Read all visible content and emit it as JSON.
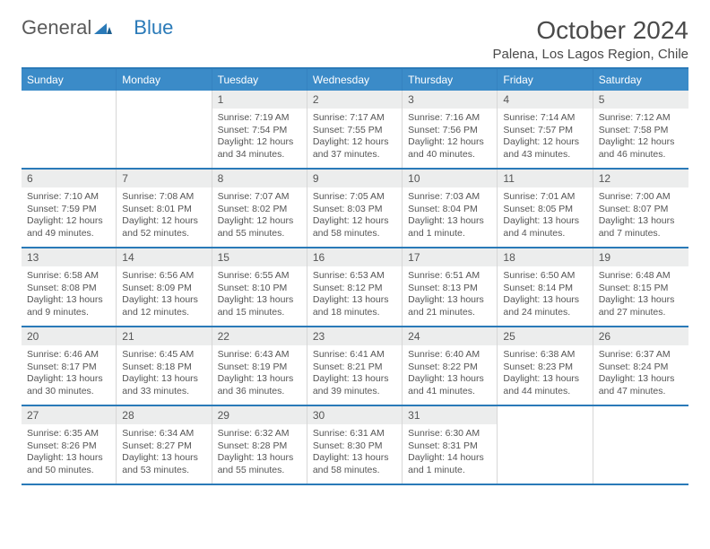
{
  "logo": {
    "text1": "General",
    "text2": "Blue"
  },
  "title": "October 2024",
  "location": "Palena, Los Lagos Region, Chile",
  "colors": {
    "header_bg": "#3b8bc8",
    "border_blue": "#2a7ab8",
    "daynum_bg": "#eceded",
    "text": "#555555",
    "cell_border": "#d7d7d7"
  },
  "weekdays": [
    "Sunday",
    "Monday",
    "Tuesday",
    "Wednesday",
    "Thursday",
    "Friday",
    "Saturday"
  ],
  "weeks": [
    [
      null,
      null,
      {
        "n": "1",
        "sr": "Sunrise: 7:19 AM",
        "ss": "Sunset: 7:54 PM",
        "dl": "Daylight: 12 hours and 34 minutes."
      },
      {
        "n": "2",
        "sr": "Sunrise: 7:17 AM",
        "ss": "Sunset: 7:55 PM",
        "dl": "Daylight: 12 hours and 37 minutes."
      },
      {
        "n": "3",
        "sr": "Sunrise: 7:16 AM",
        "ss": "Sunset: 7:56 PM",
        "dl": "Daylight: 12 hours and 40 minutes."
      },
      {
        "n": "4",
        "sr": "Sunrise: 7:14 AM",
        "ss": "Sunset: 7:57 PM",
        "dl": "Daylight: 12 hours and 43 minutes."
      },
      {
        "n": "5",
        "sr": "Sunrise: 7:12 AM",
        "ss": "Sunset: 7:58 PM",
        "dl": "Daylight: 12 hours and 46 minutes."
      }
    ],
    [
      {
        "n": "6",
        "sr": "Sunrise: 7:10 AM",
        "ss": "Sunset: 7:59 PM",
        "dl": "Daylight: 12 hours and 49 minutes."
      },
      {
        "n": "7",
        "sr": "Sunrise: 7:08 AM",
        "ss": "Sunset: 8:01 PM",
        "dl": "Daylight: 12 hours and 52 minutes."
      },
      {
        "n": "8",
        "sr": "Sunrise: 7:07 AM",
        "ss": "Sunset: 8:02 PM",
        "dl": "Daylight: 12 hours and 55 minutes."
      },
      {
        "n": "9",
        "sr": "Sunrise: 7:05 AM",
        "ss": "Sunset: 8:03 PM",
        "dl": "Daylight: 12 hours and 58 minutes."
      },
      {
        "n": "10",
        "sr": "Sunrise: 7:03 AM",
        "ss": "Sunset: 8:04 PM",
        "dl": "Daylight: 13 hours and 1 minute."
      },
      {
        "n": "11",
        "sr": "Sunrise: 7:01 AM",
        "ss": "Sunset: 8:05 PM",
        "dl": "Daylight: 13 hours and 4 minutes."
      },
      {
        "n": "12",
        "sr": "Sunrise: 7:00 AM",
        "ss": "Sunset: 8:07 PM",
        "dl": "Daylight: 13 hours and 7 minutes."
      }
    ],
    [
      {
        "n": "13",
        "sr": "Sunrise: 6:58 AM",
        "ss": "Sunset: 8:08 PM",
        "dl": "Daylight: 13 hours and 9 minutes."
      },
      {
        "n": "14",
        "sr": "Sunrise: 6:56 AM",
        "ss": "Sunset: 8:09 PM",
        "dl": "Daylight: 13 hours and 12 minutes."
      },
      {
        "n": "15",
        "sr": "Sunrise: 6:55 AM",
        "ss": "Sunset: 8:10 PM",
        "dl": "Daylight: 13 hours and 15 minutes."
      },
      {
        "n": "16",
        "sr": "Sunrise: 6:53 AM",
        "ss": "Sunset: 8:12 PM",
        "dl": "Daylight: 13 hours and 18 minutes."
      },
      {
        "n": "17",
        "sr": "Sunrise: 6:51 AM",
        "ss": "Sunset: 8:13 PM",
        "dl": "Daylight: 13 hours and 21 minutes."
      },
      {
        "n": "18",
        "sr": "Sunrise: 6:50 AM",
        "ss": "Sunset: 8:14 PM",
        "dl": "Daylight: 13 hours and 24 minutes."
      },
      {
        "n": "19",
        "sr": "Sunrise: 6:48 AM",
        "ss": "Sunset: 8:15 PM",
        "dl": "Daylight: 13 hours and 27 minutes."
      }
    ],
    [
      {
        "n": "20",
        "sr": "Sunrise: 6:46 AM",
        "ss": "Sunset: 8:17 PM",
        "dl": "Daylight: 13 hours and 30 minutes."
      },
      {
        "n": "21",
        "sr": "Sunrise: 6:45 AM",
        "ss": "Sunset: 8:18 PM",
        "dl": "Daylight: 13 hours and 33 minutes."
      },
      {
        "n": "22",
        "sr": "Sunrise: 6:43 AM",
        "ss": "Sunset: 8:19 PM",
        "dl": "Daylight: 13 hours and 36 minutes."
      },
      {
        "n": "23",
        "sr": "Sunrise: 6:41 AM",
        "ss": "Sunset: 8:21 PM",
        "dl": "Daylight: 13 hours and 39 minutes."
      },
      {
        "n": "24",
        "sr": "Sunrise: 6:40 AM",
        "ss": "Sunset: 8:22 PM",
        "dl": "Daylight: 13 hours and 41 minutes."
      },
      {
        "n": "25",
        "sr": "Sunrise: 6:38 AM",
        "ss": "Sunset: 8:23 PM",
        "dl": "Daylight: 13 hours and 44 minutes."
      },
      {
        "n": "26",
        "sr": "Sunrise: 6:37 AM",
        "ss": "Sunset: 8:24 PM",
        "dl": "Daylight: 13 hours and 47 minutes."
      }
    ],
    [
      {
        "n": "27",
        "sr": "Sunrise: 6:35 AM",
        "ss": "Sunset: 8:26 PM",
        "dl": "Daylight: 13 hours and 50 minutes."
      },
      {
        "n": "28",
        "sr": "Sunrise: 6:34 AM",
        "ss": "Sunset: 8:27 PM",
        "dl": "Daylight: 13 hours and 53 minutes."
      },
      {
        "n": "29",
        "sr": "Sunrise: 6:32 AM",
        "ss": "Sunset: 8:28 PM",
        "dl": "Daylight: 13 hours and 55 minutes."
      },
      {
        "n": "30",
        "sr": "Sunrise: 6:31 AM",
        "ss": "Sunset: 8:30 PM",
        "dl": "Daylight: 13 hours and 58 minutes."
      },
      {
        "n": "31",
        "sr": "Sunrise: 6:30 AM",
        "ss": "Sunset: 8:31 PM",
        "dl": "Daylight: 14 hours and 1 minute."
      },
      null,
      null
    ]
  ]
}
